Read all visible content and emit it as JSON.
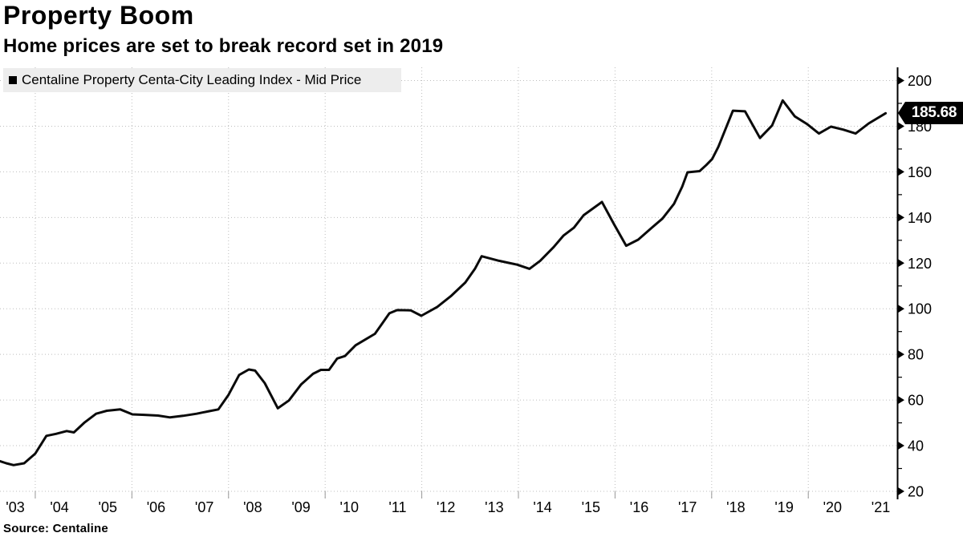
{
  "header": {
    "title": "Property Boom",
    "subtitle": "Home prices are set to break record set in 2019"
  },
  "legend": {
    "swatch": "black-square",
    "label": "Centaline Property Centa-City Leading Index - Mid Price"
  },
  "footer": {
    "source": "Source: Centaline"
  },
  "tag": {
    "label": "185.68",
    "value": 185.68
  },
  "colors": {
    "line": "#0a0a0a",
    "grid": "#bdbdbd",
    "axis": "#000000",
    "legend_bg": "#ededed",
    "tag_bg": "#000000",
    "tag_text": "#ffffff",
    "minor_x_tick": "#999999"
  },
  "chart_data": {
    "type": "line",
    "title": "Property Boom",
    "subtitle": "Home prices are set to break record set in 2019",
    "xlabel": "",
    "ylabel": "",
    "grid": "dotted",
    "legend_position": "top-left",
    "xlim": [
      2003.27,
      2021.84
    ],
    "ylim": [
      20,
      200
    ],
    "y_ticks": [
      20,
      40,
      60,
      80,
      100,
      120,
      140,
      160,
      180,
      200
    ],
    "y_minor_ticks": [
      30,
      50,
      70,
      90,
      110,
      130,
      150,
      170,
      190
    ],
    "x_tick_years": [
      2003,
      2004,
      2005,
      2006,
      2007,
      2008,
      2009,
      2010,
      2011,
      2012,
      2013,
      2014,
      2015,
      2016,
      2017,
      2018,
      2019,
      2020,
      2021
    ],
    "x_tick_labels": [
      "'03",
      "'04",
      "'05",
      "'06",
      "'07",
      "'08",
      "'09",
      "'10",
      "'11",
      "'12",
      "'13",
      "'14",
      "'15",
      "'16",
      "'17",
      "'18",
      "'19",
      "'20",
      "'21"
    ],
    "vertical_grid_years": [
      2004,
      2006,
      2008,
      2010,
      2012,
      2014,
      2016,
      2018,
      2020
    ],
    "annotation": {
      "text": "185.68",
      "value": 185.68,
      "position": "right-axis"
    },
    "series": [
      {
        "name": "Centaline Property Centa-City Leading Index - Mid Price",
        "x_unit": "decimal_year",
        "x": [
          2003.27,
          2003.4,
          2003.55,
          2003.77,
          2004.0,
          2004.23,
          2004.43,
          2004.65,
          2004.8,
          2005.01,
          2005.26,
          2005.48,
          2005.76,
          2006.01,
          2006.26,
          2006.54,
          2006.79,
          2007.06,
          2007.34,
          2007.59,
          2007.79,
          2008.0,
          2008.22,
          2008.42,
          2008.55,
          2008.75,
          2009.02,
          2009.25,
          2009.5,
          2009.75,
          2009.91,
          2010.08,
          2010.25,
          2010.41,
          2010.63,
          2010.83,
          2011.03,
          2011.18,
          2011.33,
          2011.49,
          2011.77,
          2011.99,
          2012.32,
          2012.6,
          2012.9,
          2013.1,
          2013.24,
          2013.6,
          2013.98,
          2014.23,
          2014.45,
          2014.73,
          2014.93,
          2015.15,
          2015.35,
          2015.56,
          2015.73,
          2015.98,
          2016.23,
          2016.48,
          2016.76,
          2016.98,
          2017.22,
          2017.39,
          2017.5,
          2017.75,
          2017.89,
          2018.01,
          2018.14,
          2018.44,
          2018.69,
          2019.0,
          2019.25,
          2019.47,
          2019.72,
          2019.97,
          2020.22,
          2020.47,
          2020.72,
          2020.98,
          2021.25,
          2021.6
        ],
        "y": [
          33.2,
          32.3,
          31.5,
          32.3,
          36.5,
          44.3,
          45.2,
          46.4,
          45.8,
          50.0,
          54.0,
          55.3,
          55.9,
          53.7,
          53.5,
          53.2,
          52.4,
          53.1,
          54.0,
          55.1,
          55.9,
          62.3,
          71.0,
          73.4,
          72.9,
          67.4,
          56.4,
          59.8,
          66.8,
          71.5,
          73.2,
          73.2,
          78.2,
          79.3,
          84.0,
          86.5,
          89.0,
          93.5,
          98.0,
          99.4,
          99.3,
          96.9,
          100.8,
          105.5,
          111.5,
          117.5,
          123.0,
          121.0,
          119.3,
          117.5,
          121.0,
          127.0,
          132.0,
          135.5,
          141.0,
          144.2,
          146.8,
          137.0,
          127.6,
          130.3,
          135.5,
          139.5,
          146.0,
          153.5,
          159.8,
          160.3,
          163.0,
          165.6,
          171.0,
          186.8,
          186.5,
          174.8,
          180.3,
          191.3,
          184.3,
          181.0,
          176.8,
          179.8,
          178.5,
          176.8,
          181.2,
          185.68
        ]
      }
    ]
  }
}
